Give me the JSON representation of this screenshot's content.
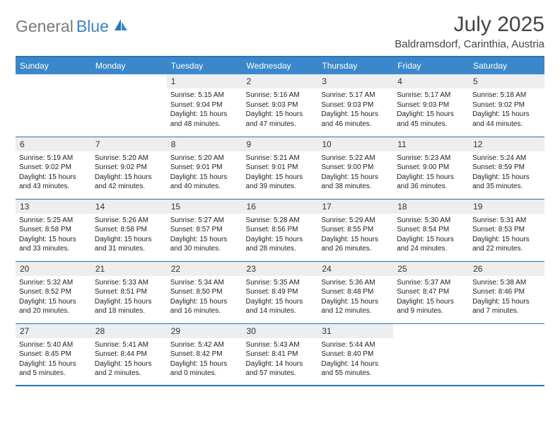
{
  "logo": {
    "gray": "General",
    "blue": "Blue"
  },
  "title": "July 2025",
  "location": "Baldramsdorf, Carinthia, Austria",
  "colors": {
    "header_bg": "#3b87cc",
    "border": "#2874b8",
    "daynum_bg": "#eceeef",
    "logo_gray": "#7a7a7a",
    "logo_blue": "#3b82c4"
  },
  "weekdays": [
    "Sunday",
    "Monday",
    "Tuesday",
    "Wednesday",
    "Thursday",
    "Friday",
    "Saturday"
  ],
  "weeks": [
    [
      null,
      null,
      {
        "n": "1",
        "sr": "Sunrise: 5:15 AM",
        "ss": "Sunset: 9:04 PM",
        "d1": "Daylight: 15 hours",
        "d2": "and 48 minutes."
      },
      {
        "n": "2",
        "sr": "Sunrise: 5:16 AM",
        "ss": "Sunset: 9:03 PM",
        "d1": "Daylight: 15 hours",
        "d2": "and 47 minutes."
      },
      {
        "n": "3",
        "sr": "Sunrise: 5:17 AM",
        "ss": "Sunset: 9:03 PM",
        "d1": "Daylight: 15 hours",
        "d2": "and 46 minutes."
      },
      {
        "n": "4",
        "sr": "Sunrise: 5:17 AM",
        "ss": "Sunset: 9:03 PM",
        "d1": "Daylight: 15 hours",
        "d2": "and 45 minutes."
      },
      {
        "n": "5",
        "sr": "Sunrise: 5:18 AM",
        "ss": "Sunset: 9:02 PM",
        "d1": "Daylight: 15 hours",
        "d2": "and 44 minutes."
      }
    ],
    [
      {
        "n": "6",
        "sr": "Sunrise: 5:19 AM",
        "ss": "Sunset: 9:02 PM",
        "d1": "Daylight: 15 hours",
        "d2": "and 43 minutes."
      },
      {
        "n": "7",
        "sr": "Sunrise: 5:20 AM",
        "ss": "Sunset: 9:02 PM",
        "d1": "Daylight: 15 hours",
        "d2": "and 42 minutes."
      },
      {
        "n": "8",
        "sr": "Sunrise: 5:20 AM",
        "ss": "Sunset: 9:01 PM",
        "d1": "Daylight: 15 hours",
        "d2": "and 40 minutes."
      },
      {
        "n": "9",
        "sr": "Sunrise: 5:21 AM",
        "ss": "Sunset: 9:01 PM",
        "d1": "Daylight: 15 hours",
        "d2": "and 39 minutes."
      },
      {
        "n": "10",
        "sr": "Sunrise: 5:22 AM",
        "ss": "Sunset: 9:00 PM",
        "d1": "Daylight: 15 hours",
        "d2": "and 38 minutes."
      },
      {
        "n": "11",
        "sr": "Sunrise: 5:23 AM",
        "ss": "Sunset: 9:00 PM",
        "d1": "Daylight: 15 hours",
        "d2": "and 36 minutes."
      },
      {
        "n": "12",
        "sr": "Sunrise: 5:24 AM",
        "ss": "Sunset: 8:59 PM",
        "d1": "Daylight: 15 hours",
        "d2": "and 35 minutes."
      }
    ],
    [
      {
        "n": "13",
        "sr": "Sunrise: 5:25 AM",
        "ss": "Sunset: 8:58 PM",
        "d1": "Daylight: 15 hours",
        "d2": "and 33 minutes."
      },
      {
        "n": "14",
        "sr": "Sunrise: 5:26 AM",
        "ss": "Sunset: 8:58 PM",
        "d1": "Daylight: 15 hours",
        "d2": "and 31 minutes."
      },
      {
        "n": "15",
        "sr": "Sunrise: 5:27 AM",
        "ss": "Sunset: 8:57 PM",
        "d1": "Daylight: 15 hours",
        "d2": "and 30 minutes."
      },
      {
        "n": "16",
        "sr": "Sunrise: 5:28 AM",
        "ss": "Sunset: 8:56 PM",
        "d1": "Daylight: 15 hours",
        "d2": "and 28 minutes."
      },
      {
        "n": "17",
        "sr": "Sunrise: 5:29 AM",
        "ss": "Sunset: 8:55 PM",
        "d1": "Daylight: 15 hours",
        "d2": "and 26 minutes."
      },
      {
        "n": "18",
        "sr": "Sunrise: 5:30 AM",
        "ss": "Sunset: 8:54 PM",
        "d1": "Daylight: 15 hours",
        "d2": "and 24 minutes."
      },
      {
        "n": "19",
        "sr": "Sunrise: 5:31 AM",
        "ss": "Sunset: 8:53 PM",
        "d1": "Daylight: 15 hours",
        "d2": "and 22 minutes."
      }
    ],
    [
      {
        "n": "20",
        "sr": "Sunrise: 5:32 AM",
        "ss": "Sunset: 8:52 PM",
        "d1": "Daylight: 15 hours",
        "d2": "and 20 minutes."
      },
      {
        "n": "21",
        "sr": "Sunrise: 5:33 AM",
        "ss": "Sunset: 8:51 PM",
        "d1": "Daylight: 15 hours",
        "d2": "and 18 minutes."
      },
      {
        "n": "22",
        "sr": "Sunrise: 5:34 AM",
        "ss": "Sunset: 8:50 PM",
        "d1": "Daylight: 15 hours",
        "d2": "and 16 minutes."
      },
      {
        "n": "23",
        "sr": "Sunrise: 5:35 AM",
        "ss": "Sunset: 8:49 PM",
        "d1": "Daylight: 15 hours",
        "d2": "and 14 minutes."
      },
      {
        "n": "24",
        "sr": "Sunrise: 5:36 AM",
        "ss": "Sunset: 8:48 PM",
        "d1": "Daylight: 15 hours",
        "d2": "and 12 minutes."
      },
      {
        "n": "25",
        "sr": "Sunrise: 5:37 AM",
        "ss": "Sunset: 8:47 PM",
        "d1": "Daylight: 15 hours",
        "d2": "and 9 minutes."
      },
      {
        "n": "26",
        "sr": "Sunrise: 5:38 AM",
        "ss": "Sunset: 8:46 PM",
        "d1": "Daylight: 15 hours",
        "d2": "and 7 minutes."
      }
    ],
    [
      {
        "n": "27",
        "sr": "Sunrise: 5:40 AM",
        "ss": "Sunset: 8:45 PM",
        "d1": "Daylight: 15 hours",
        "d2": "and 5 minutes."
      },
      {
        "n": "28",
        "sr": "Sunrise: 5:41 AM",
        "ss": "Sunset: 8:44 PM",
        "d1": "Daylight: 15 hours",
        "d2": "and 2 minutes."
      },
      {
        "n": "29",
        "sr": "Sunrise: 5:42 AM",
        "ss": "Sunset: 8:42 PM",
        "d1": "Daylight: 15 hours",
        "d2": "and 0 minutes."
      },
      {
        "n": "30",
        "sr": "Sunrise: 5:43 AM",
        "ss": "Sunset: 8:41 PM",
        "d1": "Daylight: 14 hours",
        "d2": "and 57 minutes."
      },
      {
        "n": "31",
        "sr": "Sunrise: 5:44 AM",
        "ss": "Sunset: 8:40 PM",
        "d1": "Daylight: 14 hours",
        "d2": "and 55 minutes."
      },
      null,
      null
    ]
  ]
}
